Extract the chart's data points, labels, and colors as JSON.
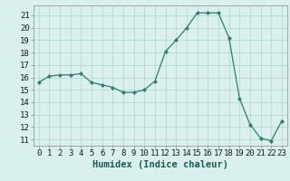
{
  "x": [
    0,
    1,
    2,
    3,
    4,
    5,
    6,
    7,
    8,
    9,
    10,
    11,
    12,
    13,
    14,
    15,
    16,
    17,
    18,
    19,
    20,
    21,
    22,
    23
  ],
  "y": [
    15.6,
    16.1,
    16.2,
    16.2,
    16.3,
    15.6,
    15.4,
    15.2,
    14.8,
    14.8,
    15.0,
    15.7,
    18.1,
    19.0,
    20.0,
    21.2,
    21.2,
    21.2,
    19.2,
    14.3,
    12.2,
    11.1,
    10.9,
    12.5
  ],
  "line_color": "#2e7d6e",
  "bg_color": "#d9f0ed",
  "grid_color": "#b0d4cc",
  "xlabel": "Humidex (Indice chaleur)",
  "ylim": [
    10.5,
    21.8
  ],
  "xlim": [
    -0.5,
    23.5
  ],
  "yticks": [
    11,
    12,
    13,
    14,
    15,
    16,
    17,
    18,
    19,
    20,
    21
  ],
  "xticks": [
    0,
    1,
    2,
    3,
    4,
    5,
    6,
    7,
    8,
    9,
    10,
    11,
    12,
    13,
    14,
    15,
    16,
    17,
    18,
    19,
    20,
    21,
    22,
    23
  ],
  "xlabel_fontsize": 7.5,
  "tick_fontsize": 6.5
}
